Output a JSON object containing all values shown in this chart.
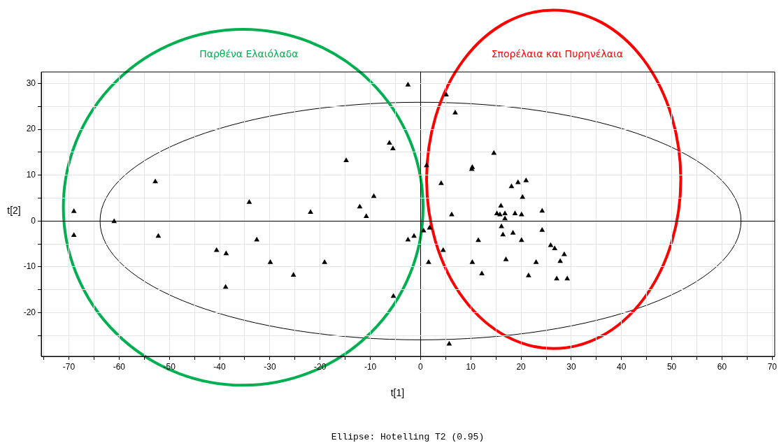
{
  "chart_data": {
    "type": "scatter",
    "xlabel": "t[1]",
    "ylabel": "t[2]",
    "annotations": [
      "Παρθένα Ελαιόλαδα",
      "Σπορέλαια και Πυρηνέλαια",
      "Ellipse: Hotelling T2 (0.95)"
    ],
    "xlim": [
      -75.5,
      70.5
    ],
    "xticks": [
      {
        "value": -75,
        "label": null
      },
      -70,
      {
        "value": -65,
        "label": null
      },
      -60,
      {
        "value": -55,
        "label": null
      },
      -50,
      {
        "value": -45,
        "label": null
      },
      -40,
      {
        "value": -35,
        "label": null
      },
      -30,
      {
        "value": -25,
        "label": null
      },
      -20,
      {
        "value": -15,
        "label": null
      },
      -10,
      {
        "value": -5,
        "label": null
      },
      0,
      {
        "value": 5,
        "label": null
      },
      10,
      {
        "value": 15,
        "label": null
      },
      20,
      {
        "value": 25,
        "label": null
      },
      30,
      {
        "value": 35,
        "label": null
      },
      40,
      {
        "value": 45,
        "label": null
      },
      50,
      {
        "value": 55,
        "label": null
      },
      60,
      {
        "value": 65,
        "label": null
      },
      70
    ],
    "ylim": [
      -29.5,
      32.5
    ],
    "yticks": [
      {
        "value": -25,
        "label": null
      },
      -20,
      {
        "value": -15,
        "label": null
      },
      -10,
      {
        "value": -5,
        "label": null
      },
      0,
      {
        "value": 5,
        "label": null
      },
      10,
      {
        "value": 15,
        "label": null
      },
      20,
      {
        "value": 25,
        "label": null
      },
      30
    ],
    "grid": true,
    "series": [
      {
        "type": "scatter",
        "marker": "triangle",
        "color": "#000000",
        "x": [
          -2.5,
          -6.2,
          -5.5,
          -14.8,
          -52.8,
          -9.3,
          -34.1,
          -12.1,
          -69.0,
          -21.9,
          -10.8,
          -61.0,
          -69.0,
          -52.2,
          -2.5,
          -1.3,
          -32.6,
          -40.6,
          -38.7,
          -29.9,
          -19.1,
          -25.3,
          -38.8,
          -5.4,
          5.1,
          6.9,
          14.6,
          10.3,
          10.2,
          1.2,
          4.1,
          21.0,
          19.4,
          18.1,
          20.3,
          24.2,
          16.0,
          15.2,
          15.8,
          16.8,
          18.8,
          20.1,
          6.2,
          16.8,
          16.1,
          24.2,
          1.8,
          0.6,
          16.4,
          18.4,
          11.5,
          20.1,
          4.5,
          25.9,
          26.7,
          28.6,
          27.8,
          1.6,
          10.3,
          17.0,
          23.0,
          12.2,
          21.5,
          27.1,
          29.2,
          5.7
        ],
        "values": [
          29.7,
          17.0,
          15.8,
          13.2,
          8.6,
          5.4,
          4.1,
          3.1,
          2.1,
          1.9,
          1.0,
          -0.1,
          -3.1,
          -3.3,
          -4.1,
          -3.3,
          -4.1,
          -6.4,
          -7.1,
          -9.0,
          -9.0,
          -11.8,
          -14.4,
          -16.4,
          27.5,
          23.6,
          14.8,
          11.7,
          11.3,
          12.1,
          8.2,
          8.8,
          8.4,
          7.5,
          5.2,
          2.2,
          3.3,
          1.6,
          1.4,
          1.6,
          1.6,
          1.4,
          1.4,
          0.5,
          -1.2,
          -2.0,
          -1.5,
          -2.1,
          -3.0,
          -2.6,
          -4.2,
          -4.2,
          -6.4,
          -5.3,
          -6.0,
          -7.3,
          -8.8,
          -9.0,
          -9.0,
          -8.4,
          -9.0,
          -11.5,
          -11.9,
          -12.6,
          -12.6,
          -26.8
        ]
      }
    ]
  }
}
